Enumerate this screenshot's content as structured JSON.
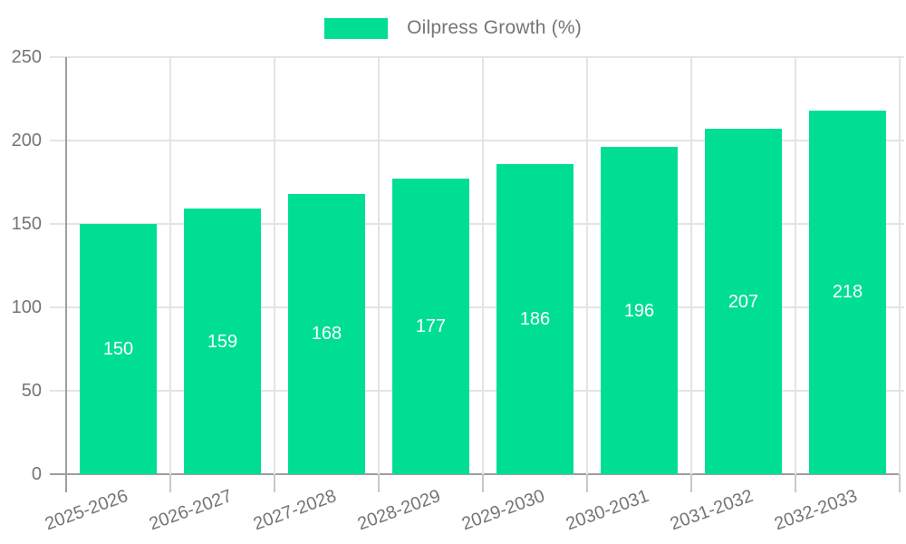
{
  "legend": {
    "label": "Oilpress Growth (%)"
  },
  "chart_data": {
    "type": "bar",
    "title": "",
    "xlabel": "",
    "ylabel": "",
    "categories": [
      "2025-2026",
      "2026-2027",
      "2027-2028",
      "2028-2029",
      "2029-2030",
      "2030-2031",
      "2031-2032",
      "2032-2033"
    ],
    "series": [
      {
        "name": "Oilpress Growth (%)",
        "values": [
          150,
          159,
          168,
          177,
          186,
          196,
          207,
          218
        ]
      }
    ],
    "ylim": [
      0,
      250
    ],
    "yticks": [
      0,
      50,
      100,
      150,
      200,
      250
    ],
    "grid": true,
    "legend_position": "top",
    "colors": {
      "bar": "#00DE94",
      "grid": "#E4E4E4",
      "axis": "#9E9E9E",
      "tick": "#C9C9C9",
      "label_text": "#757575",
      "value_text": "#FFFFFF",
      "background": "#FFFFFF"
    }
  }
}
